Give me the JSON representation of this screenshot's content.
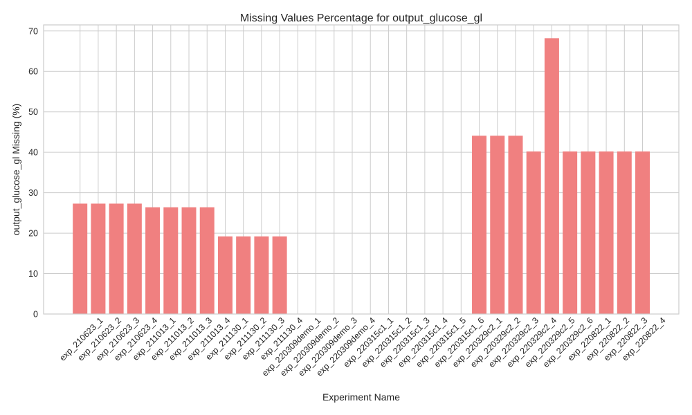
{
  "chart_data": {
    "type": "bar",
    "title": "Missing Values Percentage for output_glucose_gl",
    "xlabel": "Experiment Name",
    "ylabel": "output_glucose_gl Missing (%)",
    "ylim": [
      0,
      71.5
    ],
    "yticks": [
      0,
      10,
      20,
      30,
      40,
      50,
      60,
      70
    ],
    "grid": true,
    "bar_color": "#f08080",
    "categories": [
      "exp_210623_1",
      "exp_210623_2",
      "exp_210623_3",
      "exp_210623_4",
      "exp_211013_1",
      "exp_211013_2",
      "exp_211013_3",
      "exp_211013_4",
      "exp_211130_1",
      "exp_211130_2",
      "exp_211130_3",
      "exp_211130_4",
      "exp_220309demo_1",
      "exp_220309demo_2",
      "exp_220309demo_3",
      "exp_220309demo_4",
      "exp_220315c1_1",
      "exp_220315c1_2",
      "exp_220315c1_3",
      "exp_220315c1_4",
      "exp_220315c1_5",
      "exp_220315c1_6",
      "exp_220329c2_1",
      "exp_220329c2_2",
      "exp_220329c2_3",
      "exp_220329c2_4",
      "exp_220329c2_5",
      "exp_220329c2_6",
      "exp_220822_1",
      "exp_220822_2",
      "exp_220822_3",
      "exp_220822_4"
    ],
    "values": [
      27.3,
      27.3,
      27.3,
      27.3,
      26.4,
      26.4,
      26.4,
      26.4,
      19.2,
      19.2,
      19.2,
      19.2,
      0,
      0,
      0,
      0,
      0,
      0,
      0,
      0,
      0,
      0,
      44.1,
      44.1,
      44.1,
      40.2,
      68.2,
      40.2,
      40.2,
      40.2,
      40.2,
      40.2
    ]
  }
}
